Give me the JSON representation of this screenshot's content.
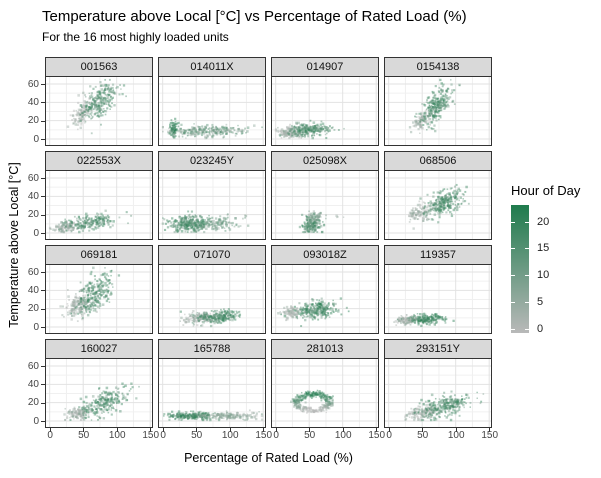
{
  "title": "Temperature above Local [°C] vs Percentage of Rated Load (%)",
  "subtitle": "For the 16 most highly loaded units",
  "axes": {
    "x_title": "Percentage of Rated Load (%)",
    "y_title": "Temperature above Local [°C]",
    "x_ticks": [
      0,
      50,
      100,
      150
    ],
    "y_ticks": [
      0,
      20,
      40,
      60
    ]
  },
  "legend": {
    "title": "Hour of Day",
    "ticks": [
      20,
      15,
      10,
      5,
      0
    ],
    "low_color": "#b9b9b9",
    "high_color": "#1f7b4d",
    "hour_domain": [
      0,
      23
    ]
  },
  "chart_data": {
    "type": "scatter",
    "title": "Temperature above Local [°C] vs Percentage of Rated Load (%)",
    "subtitle": "For the 16 most highly loaded units",
    "xlabel": "Percentage of Rated Load (%)",
    "ylabel": "Temperature above Local [°C]",
    "xlim": [
      0,
      150
    ],
    "ylim": [
      0,
      65
    ],
    "x_ticks": [
      0,
      50,
      100,
      150
    ],
    "y_ticks": [
      0,
      20,
      40,
      60
    ],
    "x_minor": [
      25,
      75,
      125
    ],
    "y_minor": [
      10,
      30,
      50
    ],
    "grid": true,
    "legend_position": "right",
    "color_scale": {
      "variable": "Hour of Day",
      "low": "#b9b9b9",
      "high": "#1f7b4d",
      "domain": [
        0,
        23
      ]
    },
    "facets": [
      {
        "label": "001563",
        "clusters": [
          {
            "n": 120,
            "cx": 50,
            "cy": 29,
            "sx": 7,
            "sy": 8,
            "corr": 0.55,
            "hours": [
              0,
              6
            ]
          },
          {
            "n": 240,
            "cx": 76,
            "cy": 41,
            "sx": 13,
            "sy": 10,
            "corr": 0.55,
            "hours": [
              8,
              22
            ]
          }
        ]
      },
      {
        "label": "014011X",
        "clusters": [
          {
            "n": 70,
            "cx": 17,
            "cy": 11,
            "sx": 3,
            "sy": 4.5,
            "corr": 0.1,
            "hours": [
              17,
              23
            ]
          },
          {
            "n": 260,
            "cx": 65,
            "cy": 8,
            "sx": 28,
            "sy": 3,
            "corr": 0.1,
            "hours": [
              3,
              18
            ]
          }
        ]
      },
      {
        "label": "014907",
        "clusters": [
          {
            "n": 130,
            "cx": 20,
            "cy": 7,
            "sx": 9,
            "sy": 3.5,
            "corr": 0.2,
            "hours": [
              0,
              7
            ]
          },
          {
            "n": 230,
            "cx": 50,
            "cy": 9,
            "sx": 17,
            "sy": 4,
            "corr": 0.25,
            "hours": [
              8,
              22
            ]
          }
        ]
      },
      {
        "label": "0154138",
        "clusters": [
          {
            "n": 90,
            "cx": 52,
            "cy": 21,
            "sx": 7,
            "sy": 5,
            "corr": 0.6,
            "hours": [
              0,
              7
            ]
          },
          {
            "n": 250,
            "cx": 73,
            "cy": 36,
            "sx": 11,
            "sy": 10,
            "corr": 0.65,
            "hours": [
              9,
              22
            ]
          }
        ]
      },
      {
        "label": "022553X",
        "clusters": [
          {
            "n": 110,
            "cx": 25,
            "cy": 6,
            "sx": 9,
            "sy": 3,
            "corr": 0.3,
            "hours": [
              0,
              7
            ]
          },
          {
            "n": 210,
            "cx": 62,
            "cy": 11,
            "sx": 20,
            "sy": 4,
            "corr": 0.4,
            "hours": [
              8,
              21
            ]
          }
        ]
      },
      {
        "label": "023245Y",
        "clusters": [
          {
            "n": 300,
            "cx": 42,
            "cy": 10,
            "sx": 16,
            "sy": 4.5,
            "corr": 0.1,
            "hours": [
              8,
              22
            ]
          },
          {
            "n": 110,
            "cx": 85,
            "cy": 10,
            "sx": 16,
            "sy": 4,
            "corr": 0.2,
            "hours": [
              5,
              16
            ]
          }
        ]
      },
      {
        "label": "025098X",
        "clusters": [
          {
            "n": 190,
            "cx": 55,
            "cy": 9,
            "sx": 7,
            "sy": 5.5,
            "corr": 0.3,
            "hours": [
              8,
              22
            ]
          },
          {
            "n": 40,
            "cx": 60,
            "cy": 17,
            "sx": 6,
            "sy": 3.5,
            "corr": 0,
            "hours": [
              3,
              10
            ]
          },
          {
            "n": 4,
            "cx": 95,
            "cy": 17,
            "sx": 3,
            "sy": 1.5,
            "corr": 0,
            "hours": [
              2,
              6
            ]
          }
        ]
      },
      {
        "label": "068506",
        "clusters": [
          {
            "n": 110,
            "cx": 47,
            "cy": 22,
            "sx": 10,
            "sy": 5,
            "corr": 0.5,
            "hours": [
              0,
              7
            ]
          },
          {
            "n": 250,
            "cx": 86,
            "cy": 33,
            "sx": 15,
            "sy": 8,
            "corr": 0.55,
            "hours": [
              9,
              22
            ]
          }
        ]
      },
      {
        "label": "069181",
        "clusters": [
          {
            "n": 160,
            "cx": 42,
            "cy": 23,
            "sx": 9,
            "sy": 7,
            "corr": 0.35,
            "hours": [
              0,
              7
            ]
          },
          {
            "n": 250,
            "cx": 68,
            "cy": 36,
            "sx": 14,
            "sy": 11,
            "corr": 0.55,
            "hours": [
              8,
              22
            ]
          }
        ]
      },
      {
        "label": "071070",
        "clusters": [
          {
            "n": 130,
            "cx": 55,
            "cy": 9,
            "sx": 12,
            "sy": 3,
            "corr": 0.2,
            "hours": [
              0,
              7
            ]
          },
          {
            "n": 220,
            "cx": 86,
            "cy": 11,
            "sx": 15,
            "sy": 3.5,
            "corr": 0.2,
            "hours": [
              9,
              22
            ]
          }
        ]
      },
      {
        "label": "093018Z",
        "clusters": [
          {
            "n": 90,
            "cx": 24,
            "cy": 15,
            "sx": 7,
            "sy": 3,
            "corr": 0,
            "hours": [
              0,
              6
            ]
          },
          {
            "n": 250,
            "cx": 62,
            "cy": 18,
            "sx": 16,
            "sy": 4.5,
            "corr": 0.1,
            "hours": [
              9,
              23
            ]
          }
        ]
      },
      {
        "label": "119357",
        "clusters": [
          {
            "n": 110,
            "cx": 29,
            "cy": 7,
            "sx": 8,
            "sy": 2.5,
            "corr": 0.2,
            "hours": [
              0,
              7
            ]
          },
          {
            "n": 190,
            "cx": 57,
            "cy": 8,
            "sx": 12,
            "sy": 2.5,
            "corr": 0.1,
            "hours": [
              12,
              23
            ]
          }
        ]
      },
      {
        "label": "160027",
        "clusters": [
          {
            "n": 110,
            "cx": 44,
            "cy": 8,
            "sx": 9,
            "sy": 3,
            "corr": 0.3,
            "hours": [
              0,
              7
            ]
          },
          {
            "n": 230,
            "cx": 82,
            "cy": 20,
            "sx": 17,
            "sy": 8,
            "corr": 0.6,
            "hours": [
              8,
              22
            ]
          }
        ]
      },
      {
        "label": "165788",
        "clusters": [
          {
            "n": 250,
            "cx": 45,
            "cy": 5,
            "sx": 19,
            "sy": 2,
            "corr": 0,
            "hours": [
              10,
              22
            ]
          },
          {
            "n": 150,
            "cx": 103,
            "cy": 5,
            "sx": 21,
            "sy": 2,
            "corr": 0,
            "hours": [
              2,
              10
            ]
          }
        ]
      },
      {
        "label": "281013",
        "clusters": [
          {
            "shape": "ring",
            "n": 300,
            "cx": 57,
            "cy": 20,
            "rx": 25,
            "ry": 9,
            "jitter": 3.5
          }
        ]
      },
      {
        "label": "293151Y",
        "clusters": [
          {
            "n": 140,
            "cx": 50,
            "cy": 8,
            "sx": 13,
            "sy": 4,
            "corr": 0.3,
            "hours": [
              0,
              7
            ]
          },
          {
            "n": 250,
            "cx": 85,
            "cy": 16,
            "sx": 19,
            "sy": 7,
            "corr": 0.5,
            "hours": [
              9,
              22
            ]
          }
        ]
      }
    ]
  }
}
